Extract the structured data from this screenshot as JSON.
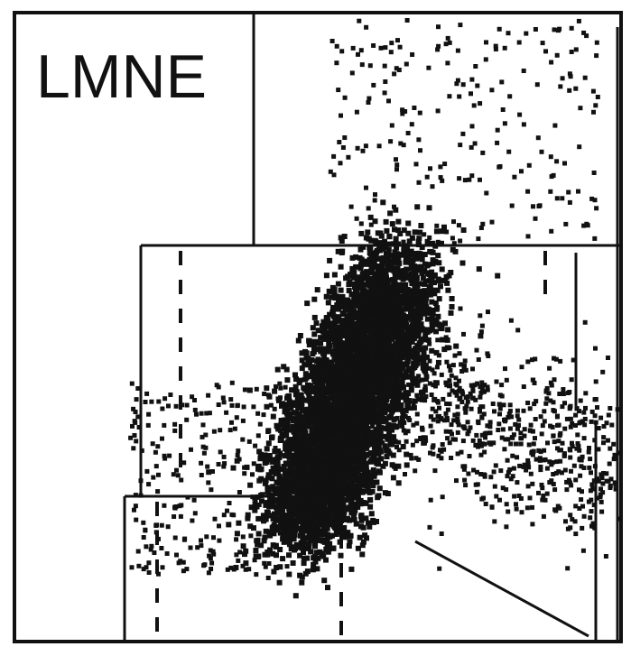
{
  "chart_data": {
    "type": "scatter",
    "title": "LMNE",
    "xlabel": "",
    "ylabel": "",
    "grid": false,
    "legend": "none",
    "colors": {
      "points": "#111111",
      "gates": "#111111",
      "background": "#ffffff"
    },
    "series": [
      {
        "cluster": "main-dense-population",
        "approx_points": 5200
      },
      {
        "cluster": "upper-right-sparse",
        "approx_points": 220
      },
      {
        "cluster": "left-low-region",
        "approx_points": 260
      },
      {
        "cluster": "right-tail",
        "approx_points": 700
      }
    ]
  }
}
